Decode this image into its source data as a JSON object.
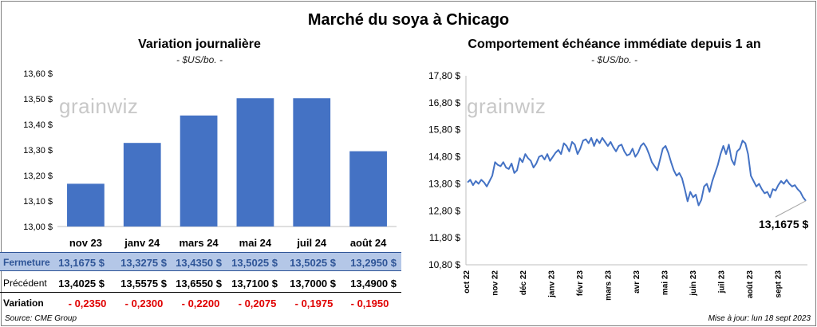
{
  "title": "Marché du soya à Chicago",
  "left_panel": {
    "subtitle": "Variation journalière",
    "unit": "- $US/bo. -",
    "logo_text": "grainwiz"
  },
  "right_panel": {
    "subtitle": "Comportement échéance immédiate depuis 1 an",
    "unit": "- $US/bo. -",
    "logo_text": "grainwiz",
    "last_value_label": "13,1675 $"
  },
  "table": {
    "row_labels": {
      "close": "Fermeture",
      "prev": "Précédent",
      "var": "Variation"
    },
    "close": [
      "13,1675  $",
      "13,3275  $",
      "13,4350  $",
      "13,5025  $",
      "13,5025  $",
      "13,2950  $"
    ],
    "prev": [
      "13,4025  $",
      "13,5575  $",
      "13,6550  $",
      "13,7100  $",
      "13,7000  $",
      "13,4900  $"
    ],
    "var": [
      "- 0,2350",
      "- 0,2300",
      "- 0,2200",
      "- 0,2075",
      "- 0,1975",
      "- 0,1950"
    ]
  },
  "footer": {
    "source": "Source: CME Group",
    "update": "Mise à jour: lun 18 sept 2023"
  },
  "colors": {
    "bar": "#4472c4",
    "line": "#4472c4",
    "close_row_bg": "#b4c7e7",
    "negative": "#e00000"
  },
  "chart_data": [
    {
      "type": "bar",
      "categories": [
        "nov 23",
        "janv 24",
        "mars 24",
        "mai 24",
        "juil 24",
        "août 24"
      ],
      "values": [
        13.1675,
        13.3275,
        13.435,
        13.5025,
        13.5025,
        13.295
      ],
      "ylim": [
        13.0,
        13.6
      ],
      "yticks": [
        13.0,
        13.1,
        13.2,
        13.3,
        13.4,
        13.5,
        13.6
      ],
      "ytick_labels": [
        "13,00 $",
        "13,10 $",
        "13,20 $",
        "13,30 $",
        "13,40 $",
        "13,50 $",
        "13,60 $"
      ],
      "grid": false,
      "legend": "none"
    },
    {
      "type": "line",
      "x_labels": [
        "oct 22",
        "nov 22",
        "déc 22",
        "janv 23",
        "févr 23",
        "mars 23",
        "avr 23",
        "mai 23",
        "juin 23",
        "juil 23",
        "août 23",
        "sept 23"
      ],
      "ylim": [
        10.8,
        17.8
      ],
      "yticks": [
        10.8,
        11.8,
        12.8,
        13.8,
        14.8,
        15.8,
        16.8,
        17.8
      ],
      "ytick_labels": [
        "10,80 $",
        "11,80 $",
        "12,80 $",
        "13,80 $",
        "14,80 $",
        "15,80 $",
        "16,80 $",
        "17,80 $"
      ],
      "series": [
        {
          "values": [
            13.85,
            13.95,
            13.75,
            13.9,
            13.8,
            13.95,
            13.85,
            13.7,
            13.9,
            14.1,
            14.6,
            14.5,
            14.45,
            14.6,
            14.4,
            14.35,
            14.55,
            14.2,
            14.3,
            14.75,
            14.6,
            14.9,
            14.75,
            14.65,
            14.4,
            14.55,
            14.8,
            14.85,
            14.7,
            14.9,
            14.65,
            14.8,
            14.95,
            15.05,
            14.9,
            15.3,
            15.2,
            15.0,
            15.35,
            15.25,
            14.9,
            15.1,
            15.4,
            15.45,
            15.3,
            15.5,
            15.2,
            15.45,
            15.3,
            15.5,
            15.35,
            15.2,
            15.35,
            15.15,
            15.0,
            15.2,
            15.25,
            15.0,
            14.85,
            14.9,
            15.1,
            14.8,
            14.95,
            15.2,
            15.3,
            15.15,
            14.9,
            14.6,
            14.45,
            14.3,
            14.7,
            15.1,
            15.2,
            14.95,
            14.6,
            14.3,
            14.1,
            14.2,
            14.0,
            13.6,
            13.15,
            13.5,
            13.3,
            13.4,
            13.0,
            13.2,
            13.7,
            13.8,
            13.5,
            13.9,
            14.2,
            14.5,
            14.9,
            15.2,
            14.9,
            15.25,
            14.7,
            14.5,
            15.0,
            15.1,
            15.4,
            15.3,
            14.9,
            14.1,
            13.9,
            13.7,
            13.8,
            13.6,
            13.45,
            13.5,
            13.3,
            13.6,
            13.55,
            13.75,
            13.9,
            13.8,
            13.95,
            13.8,
            13.7,
            13.75,
            13.6,
            13.5,
            13.3,
            13.1675
          ]
        }
      ],
      "grid": false,
      "legend": "none"
    }
  ]
}
